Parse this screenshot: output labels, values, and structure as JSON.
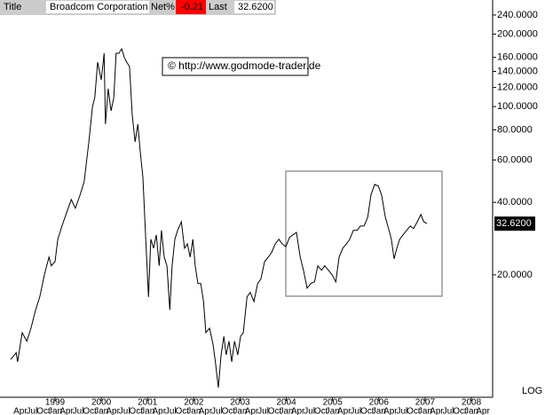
{
  "header": {
    "title_label": "Title",
    "name": "Broadcom Corporation",
    "net_label": "Net%",
    "net_value": "-0.21",
    "last_label": "Last",
    "last_value": "32.6200"
  },
  "chart_data": {
    "type": "line",
    "log_scale": true,
    "color": "#000000",
    "annotation": "©  http://www.godmode-trader.de",
    "scale_label": "LOG",
    "last_price_label": "32.6200",
    "xlim": [
      1997.81,
      2008.46
    ],
    "ylim": [
      6.2,
      277
    ],
    "xticks": [
      1999,
      2000,
      2001,
      2002,
      2003,
      2004,
      2005,
      2006,
      2007,
      2008
    ],
    "month_ticks": [
      {
        "value": 1998.25,
        "label": "Apr"
      },
      {
        "value": 1998.5,
        "label": "Jul"
      },
      {
        "value": 1998.75,
        "label": "Oct"
      },
      {
        "value": 1999,
        "label": "Jan"
      },
      {
        "value": 1999.25,
        "label": "Apr"
      },
      {
        "value": 1999.5,
        "label": "Jul"
      },
      {
        "value": 1999.75,
        "label": "Oct"
      },
      {
        "value": 2000,
        "label": "Jan"
      },
      {
        "value": 2000.25,
        "label": "Apr"
      },
      {
        "value": 2000.5,
        "label": "Jul"
      },
      {
        "value": 2000.75,
        "label": "Oct"
      },
      {
        "value": 2001,
        "label": "Jan"
      },
      {
        "value": 2001.25,
        "label": "Apr"
      },
      {
        "value": 2001.5,
        "label": "Jul"
      },
      {
        "value": 2001.75,
        "label": "Oct"
      },
      {
        "value": 2002,
        "label": "Jan"
      },
      {
        "value": 2002.25,
        "label": "Apr"
      },
      {
        "value": 2002.5,
        "label": "Jul"
      },
      {
        "value": 2002.75,
        "label": "Oct"
      },
      {
        "value": 2003,
        "label": "Jan"
      },
      {
        "value": 2003.25,
        "label": "Apr"
      },
      {
        "value": 2003.5,
        "label": "Jul"
      },
      {
        "value": 2003.75,
        "label": "Oct"
      },
      {
        "value": 2004,
        "label": "Jan"
      },
      {
        "value": 2004.25,
        "label": "Apr"
      },
      {
        "value": 2004.5,
        "label": "Jul"
      },
      {
        "value": 2004.75,
        "label": "Oct"
      },
      {
        "value": 2005,
        "label": "Jan"
      },
      {
        "value": 2005.25,
        "label": "Apr"
      },
      {
        "value": 2005.5,
        "label": "Jul"
      },
      {
        "value": 2005.75,
        "label": "Oct"
      },
      {
        "value": 2006,
        "label": "Jan"
      },
      {
        "value": 2006.25,
        "label": "Apr"
      },
      {
        "value": 2006.5,
        "label": "Jul"
      },
      {
        "value": 2006.75,
        "label": "Oct"
      },
      {
        "value": 2007,
        "label": "Jan"
      },
      {
        "value": 2007.25,
        "label": "Apr"
      },
      {
        "value": 2007.5,
        "label": "Jul"
      },
      {
        "value": 2007.75,
        "label": "Oct"
      },
      {
        "value": 2008,
        "label": "Jan"
      },
      {
        "value": 2008.25,
        "label": "Apr"
      }
    ],
    "yticks": [
      {
        "value": 240,
        "label": "240.0000"
      },
      {
        "value": 200,
        "label": "200.0000"
      },
      {
        "value": 160,
        "label": "160.0000"
      },
      {
        "value": 140,
        "label": "140.0000"
      },
      {
        "value": 120,
        "label": "120.0000"
      },
      {
        "value": 100,
        "label": "100.0000"
      },
      {
        "value": 80,
        "label": "80.0000"
      },
      {
        "value": 60,
        "label": "60.0000"
      },
      {
        "value": 40,
        "label": "40.0000"
      },
      {
        "value": 20,
        "label": "20.0000"
      }
    ],
    "x": [
      1998.04,
      1998.16,
      1998.19,
      1998.29,
      1998.39,
      1998.48,
      1998.58,
      1998.67,
      1998.77,
      1998.87,
      1998.92,
      1999.0,
      1999.06,
      1999.15,
      1999.25,
      1999.35,
      1999.44,
      1999.54,
      1999.63,
      1999.73,
      1999.81,
      1999.86,
      1999.92,
      2000.0,
      2000.06,
      2000.09,
      2000.15,
      2000.21,
      2000.27,
      2000.32,
      2000.38,
      2000.44,
      2000.5,
      2000.55,
      2000.61,
      2000.67,
      2000.73,
      2000.79,
      2000.84,
      2000.9,
      2000.96,
      2001.02,
      2001.07,
      2001.13,
      2001.19,
      2001.25,
      2001.3,
      2001.36,
      2001.42,
      2001.48,
      2001.53,
      2001.59,
      2001.65,
      2001.73,
      2001.8,
      2001.86,
      2001.92,
      2001.98,
      2002.03,
      2002.09,
      2002.15,
      2002.21,
      2002.26,
      2002.34,
      2002.42,
      2002.47,
      2002.53,
      2002.59,
      2002.65,
      2002.7,
      2002.76,
      2002.82,
      2002.88,
      2002.95,
      2003.01,
      2003.07,
      2003.15,
      2003.22,
      2003.3,
      2003.38,
      2003.45,
      2003.53,
      2003.61,
      2003.68,
      2003.76,
      2003.84,
      2003.91,
      2003.99,
      2004.07,
      2004.14,
      2004.22,
      2004.3,
      2004.37,
      2004.45,
      2004.53,
      2004.61,
      2004.68,
      2004.76,
      2004.83,
      2004.91,
      2004.99,
      2005.07,
      2005.14,
      2005.22,
      2005.3,
      2005.37,
      2005.45,
      2005.53,
      2005.6,
      2005.68,
      2005.76,
      2005.83,
      2005.91,
      2005.99,
      2006.06,
      2006.14,
      2006.22,
      2006.27,
      2006.33,
      2006.39,
      2006.45,
      2006.52,
      2006.6,
      2006.68,
      2006.75,
      2006.83,
      2006.91,
      2006.97,
      2007.04
    ],
    "series": [
      {
        "name": "Broadcom Corporation",
        "color": "#000000",
        "values": [
          8.9,
          9.5,
          8.7,
          11.5,
          10.6,
          12.0,
          14.3,
          16.2,
          20.0,
          23.7,
          21.8,
          22.7,
          28.1,
          31.9,
          36.2,
          41.1,
          37.8,
          42.9,
          48.7,
          71.3,
          100,
          108.9,
          152.9,
          129,
          166.4,
          84.5,
          118.6,
          95.9,
          108.9,
          166.4,
          166.4,
          173.6,
          159.4,
          152.9,
          146.6,
          91.9,
          71.3,
          84.5,
          65.5,
          50.8,
          28.1,
          16.2,
          28.1,
          25.8,
          29.3,
          21.8,
          30.6,
          23.7,
          21.8,
          14.3,
          21.8,
          28.1,
          30.6,
          33.2,
          25.8,
          26.9,
          23.7,
          28.1,
          21.8,
          18.4,
          18.4,
          15.5,
          11.5,
          12.0,
          10.2,
          8.6,
          6.8,
          9.3,
          11.1,
          9.3,
          10.6,
          8.7,
          10.6,
          9.3,
          11.1,
          11.5,
          16.2,
          16.9,
          15.5,
          18.4,
          19.2,
          22.7,
          23.7,
          24.7,
          26.9,
          28.1,
          26.9,
          26.2,
          28.6,
          29.3,
          30.0,
          23.7,
          20.9,
          17.6,
          18.4,
          18.7,
          21.8,
          20.9,
          21.8,
          20.9,
          20.0,
          18.7,
          23.7,
          25.8,
          26.9,
          28.1,
          30.6,
          30.6,
          31.9,
          31.9,
          34.7,
          42.9,
          47.5,
          46.7,
          42.9,
          34.7,
          30.6,
          28.1,
          23.3,
          25.8,
          28.1,
          29.3,
          30.6,
          31.9,
          31.1,
          33.2,
          35.6,
          33.2,
          32.62
        ]
      }
    ]
  }
}
